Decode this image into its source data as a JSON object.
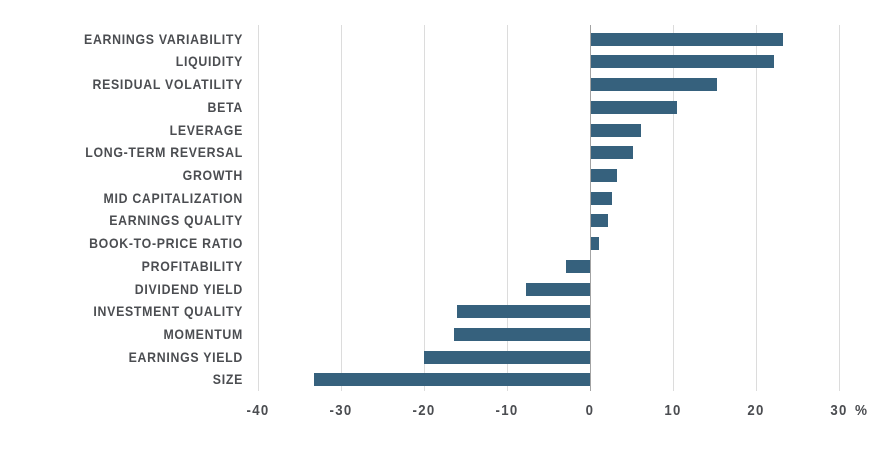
{
  "chart_data": {
    "type": "bar",
    "orientation": "horizontal",
    "title": "",
    "xlabel": "",
    "ylabel": "",
    "unit": "%",
    "xlim": [
      -40,
      30
    ],
    "x_ticks": [
      -40,
      -30,
      -20,
      -10,
      0,
      10,
      20,
      30
    ],
    "grid": "vertical",
    "legend": "none",
    "categories": [
      "EARNINGS VARIABILITY",
      "LIQUIDITY",
      "RESIDUAL VOLATILITY",
      "BETA",
      "LEVERAGE",
      "LONG-TERM REVERSAL",
      "GROWTH",
      "MID CAPITALIZATION",
      "EARNINGS QUALITY",
      "BOOK-TO-PRICE RATIO",
      "PROFITABILITY",
      "DIVIDEND YIELD",
      "INVESTMENT QUALITY",
      "MOMENTUM",
      "EARNINGS YIELD",
      "SIZE"
    ],
    "values": [
      23.1,
      22.1,
      15.2,
      10.4,
      6.0,
      5.1,
      3.1,
      2.5,
      2.0,
      1.0,
      -2.9,
      -7.7,
      -16.0,
      -16.4,
      -20.0,
      -33.2
    ],
    "colors": {
      "bar": "#36617d",
      "gridline": "#dcdcdc",
      "zero_line": "#a3a3a3",
      "text": "#4b4d51",
      "background": "#ffffff"
    }
  }
}
